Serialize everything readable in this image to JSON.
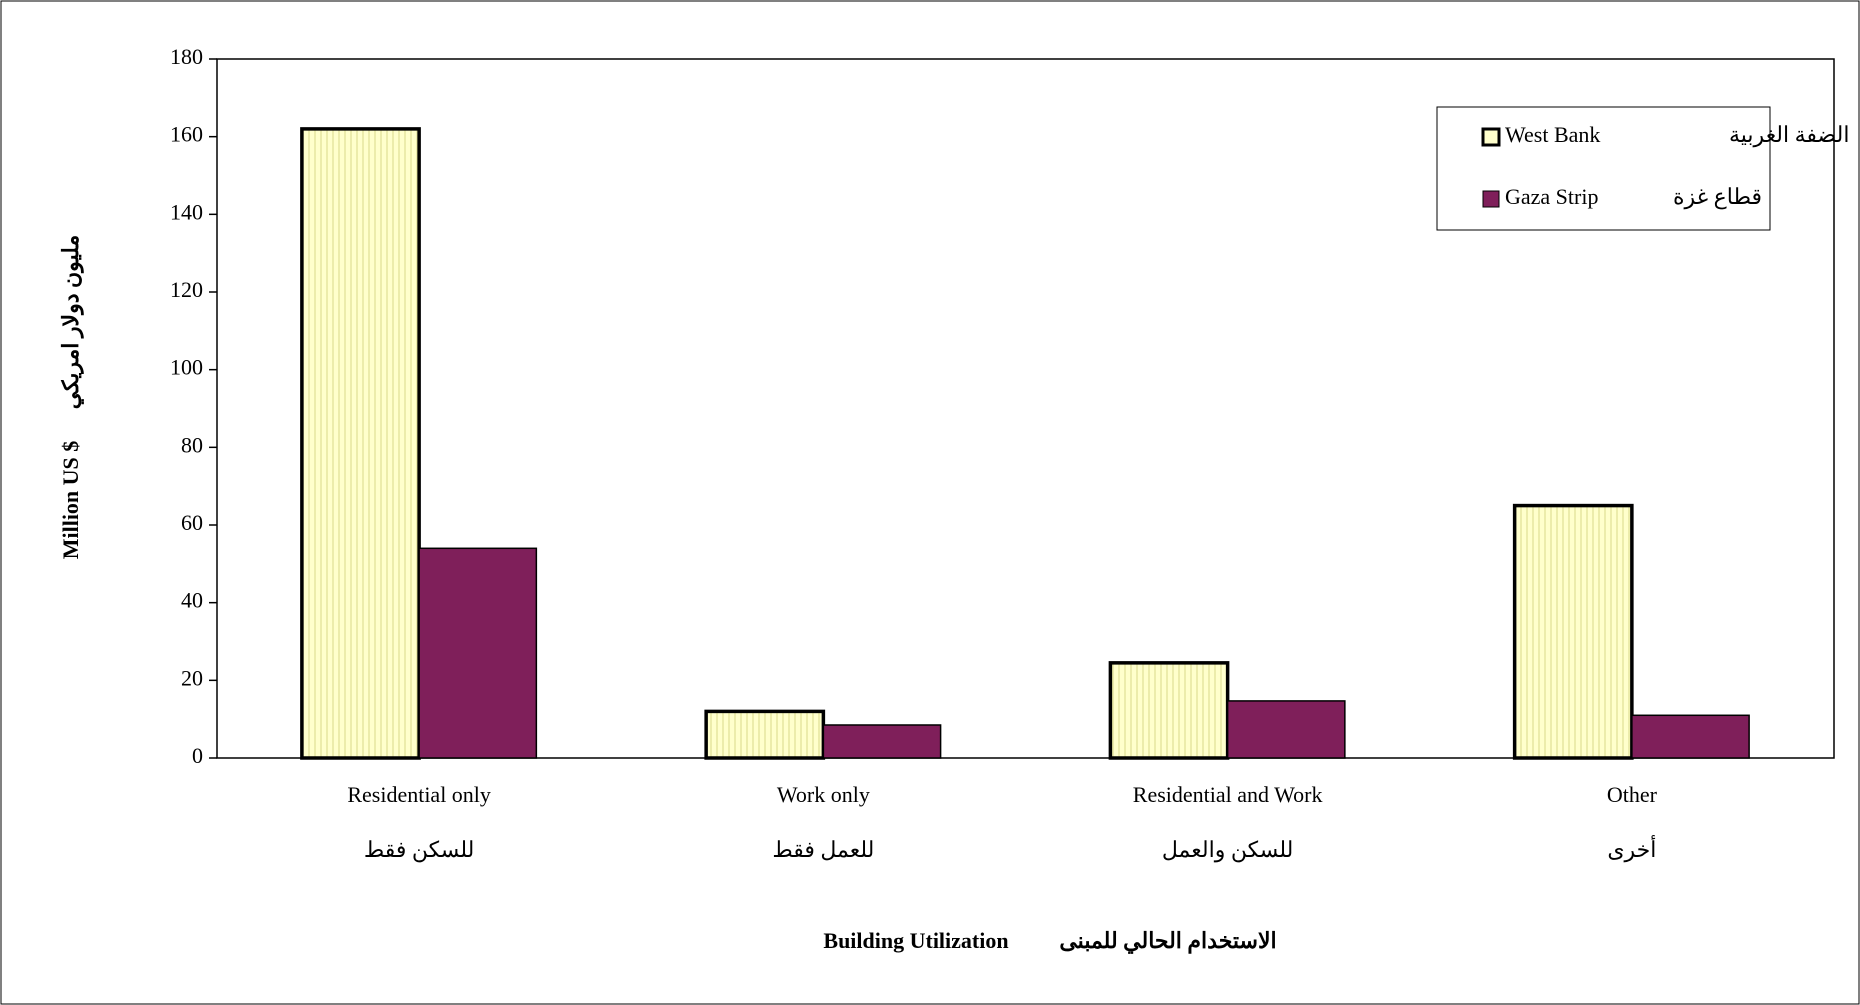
{
  "chart_data": {
    "type": "bar",
    "ylabel": "Million US $",
    "ylabel_ar": "مليون دولار امريكي",
    "xlabel": "Building Utilization",
    "xlabel_ar": "الاستخدام الحالي للمبنى",
    "categories": [
      [
        "Residential only",
        "للسكن فقط"
      ],
      [
        "Work only",
        "للعمل فقط"
      ],
      [
        "Residential and Work",
        "للسكن والعمل"
      ],
      [
        "Other",
        "أخرى"
      ]
    ],
    "series": [
      {
        "name": "West Bank",
        "name_ar": "الضفة الغربية",
        "color": "#ffffcc",
        "values": [
          162,
          12,
          24.5,
          65
        ]
      },
      {
        "name": "Gaza Strip",
        "name_ar": "قطاع غزة",
        "color": "#7f1f5a",
        "values": [
          54,
          8.5,
          14.7,
          11
        ]
      }
    ],
    "ylim": [
      0,
      180
    ],
    "yticks": [
      0,
      20,
      40,
      60,
      80,
      100,
      120,
      140,
      160,
      180
    ],
    "grid": false,
    "legend": "top-right"
  }
}
